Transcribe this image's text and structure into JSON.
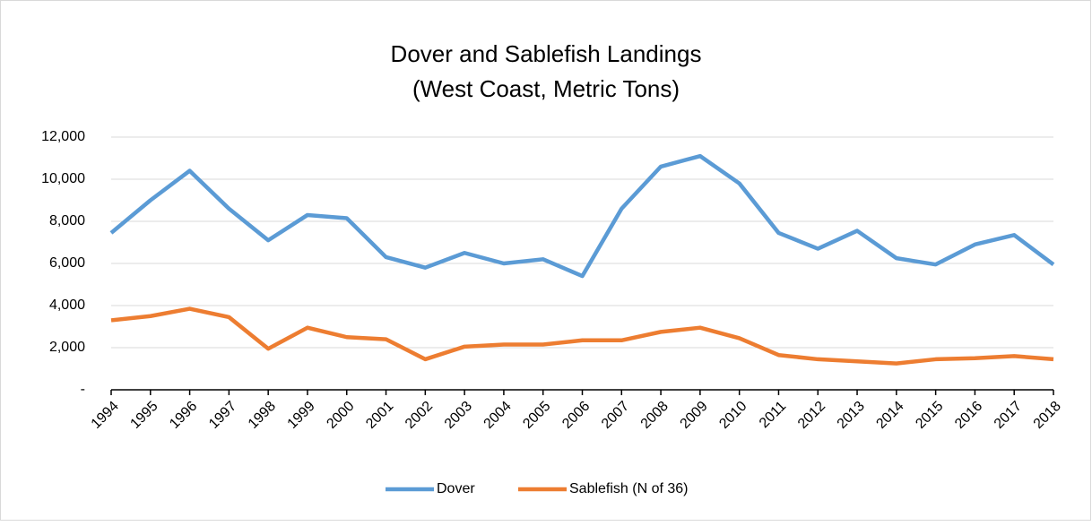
{
  "chart_data": {
    "type": "line",
    "title": "Dover and Sablefish Landings",
    "subtitle": "(West Coast, Metric Tons)",
    "categories": [
      "1994",
      "1995",
      "1996",
      "1997",
      "1998",
      "1999",
      "2000",
      "2001",
      "2002",
      "2003",
      "2004",
      "2005",
      "2006",
      "2007",
      "2008",
      "2009",
      "2010",
      "2011",
      "2012",
      "2013",
      "2014",
      "2015",
      "2016",
      "2017",
      "2018"
    ],
    "series": [
      {
        "name": "Dover",
        "color": "#5b9bd5",
        "values": [
          7450,
          9000,
          10400,
          8600,
          7100,
          8300,
          8150,
          6300,
          5800,
          6500,
          6000,
          6200,
          5400,
          8600,
          10600,
          11100,
          9800,
          7450,
          6700,
          7550,
          6250,
          5950,
          6900,
          7350,
          5950
        ]
      },
      {
        "name": "Sablefish (N of 36)",
        "color": "#ed7d31",
        "values": [
          3300,
          3500,
          3850,
          3450,
          1950,
          2950,
          2500,
          2400,
          1450,
          2050,
          2150,
          2150,
          2350,
          2350,
          2750,
          2950,
          2450,
          1650,
          1450,
          1350,
          1250,
          1450,
          1500,
          1600,
          1450
        ]
      }
    ],
    "ylim": [
      0,
      12000
    ],
    "yticks": [
      {
        "value": 0,
        "label": "-"
      },
      {
        "value": 2000,
        "label": "2,000"
      },
      {
        "value": 4000,
        "label": "4,000"
      },
      {
        "value": 6000,
        "label": "6,000"
      },
      {
        "value": 8000,
        "label": "8,000"
      },
      {
        "value": 10000,
        "label": "10,000"
      },
      {
        "value": 12000,
        "label": "12,000"
      }
    ],
    "grid": true,
    "legend": "bottom"
  }
}
